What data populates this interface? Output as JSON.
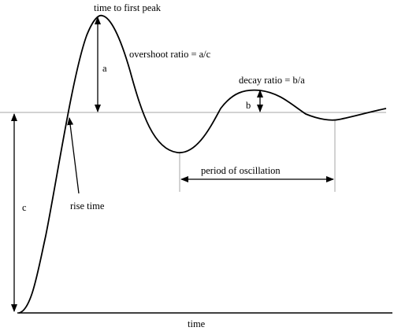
{
  "labels": {
    "time_to_first_peak": "time  to first  peak",
    "overshoot_ratio": "overshoot ratio = a/c",
    "a": "a",
    "decay_ratio": "decay ratio = b/a",
    "b": "b",
    "period_of_oscillation": "period  of oscillation",
    "c": "c",
    "rise_time": "rise  time",
    "time_axis": "time"
  },
  "colors": {
    "curve": "#000000",
    "setpoint_line": "#a6a6a6",
    "axis": "#000000",
    "guide_line": "#a6a6a6"
  }
}
